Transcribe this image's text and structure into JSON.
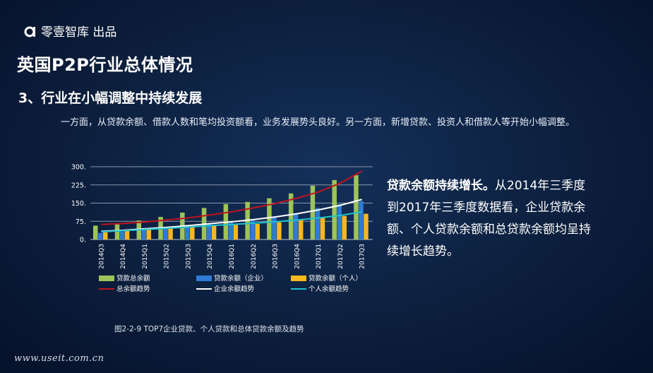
{
  "header": {
    "brand": "零壹智库 出品"
  },
  "title": "英国P2P行业总体情况",
  "subtitle": "3、行业在小幅调整中持续发展",
  "intro": "一方面，从贷款余额、借款人数和笔均投资额看，业务发展势头良好。另一方面，新增贷款、投资人和借款人等开始小幅调整。",
  "side": {
    "bold": "贷款余额持续增长。",
    "text": "从2014年三季度到2017年三季度数据看，企业贷款余额、个人贷款余额和总贷款余额均呈持续增长趋势。"
  },
  "caption": "图2-2-9  TOP7企业贷款、个人贷款和总体贷款余额及趋势",
  "footer": "www.useit.com.cn",
  "colors": {
    "total": "#9dc35a",
    "corp": "#2e7bd6",
    "personal": "#f6b81c",
    "total_trend": "#c0141e",
    "corp_trend": "#ffffff",
    "personal_trend": "#1fc3d0"
  },
  "chart_data": {
    "type": "bar",
    "categories": [
      "2014Q3",
      "2014Q4",
      "2015Q1",
      "2015Q2",
      "2015Q3",
      "2015Q4",
      "2016Q1",
      "2016Q2",
      "2016Q3",
      "2016Q4",
      "2017Q1",
      "2017Q2",
      "2017Q3"
    ],
    "ylim": [
      0,
      300
    ],
    "yticks": [
      "0.",
      "75.",
      "150.",
      "225.",
      "300."
    ],
    "ytick_values": [
      0,
      75,
      150,
      225,
      300
    ],
    "grid": true,
    "series": [
      {
        "name": "贷款总余额",
        "values": [
          57,
          67,
          78,
          93,
          111,
          130,
          146,
          155,
          170,
          190,
          222,
          245,
          265
        ]
      },
      {
        "name": "贷款余额（企业）",
        "values": [
          27,
          32,
          38,
          47,
          57,
          67,
          76,
          82,
          93,
          107,
          130,
          145,
          158
        ]
      },
      {
        "name": "贷款余额（个人）",
        "values": [
          30,
          35,
          40,
          45,
          52,
          59,
          60,
          64,
          71,
          80,
          89,
          97,
          106
        ]
      }
    ],
    "trends": [
      {
        "name": "总余额趋势",
        "values": [
          62,
          66,
          72,
          80,
          89,
          101,
          114,
          130,
          148,
          170,
          196,
          232,
          282
        ]
      },
      {
        "name": "企业余额趋势",
        "values": [
          34,
          38,
          44,
          50,
          57,
          65,
          73,
          82,
          93,
          106,
          122,
          141,
          165
        ]
      },
      {
        "name": "个人余额趋势",
        "values": [
          32,
          36,
          41,
          46,
          51,
          57,
          62,
          67,
          73,
          80,
          89,
          99,
          114
        ]
      }
    ]
  }
}
